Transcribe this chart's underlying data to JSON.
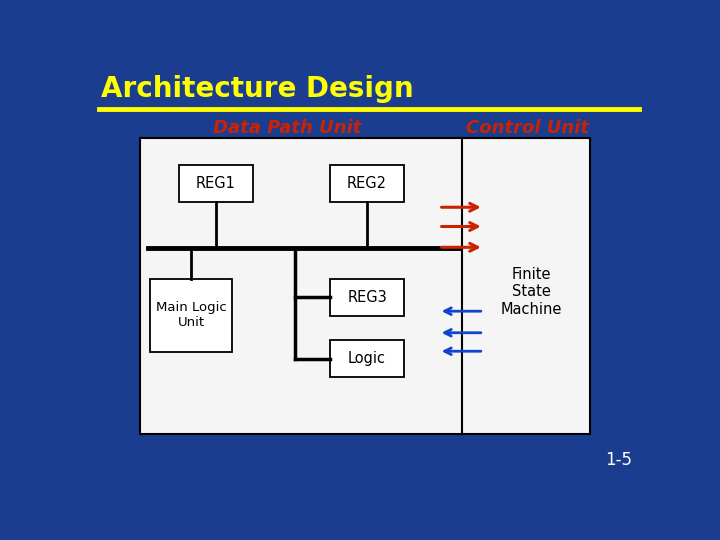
{
  "bg_color": "#1b3d8f",
  "title": "Architecture Design",
  "title_color": "#ffff00",
  "title_fontsize": 20,
  "underline_color": "#ffff00",
  "data_path_label": "Data Path Unit",
  "control_label": "Control Unit",
  "label_color": "#cc2200",
  "label_fontsize": 13,
  "slide_number": "1-5",
  "slide_number_color": "#ffffff",
  "diagram_bg": "#f5f5f5",
  "diagram_border": "#000000",
  "box_color": "#ffffff",
  "box_border": "#000000",
  "line_color": "#000000",
  "arrow_out_color": "#cc2200",
  "arrow_in_color": "#1144cc"
}
